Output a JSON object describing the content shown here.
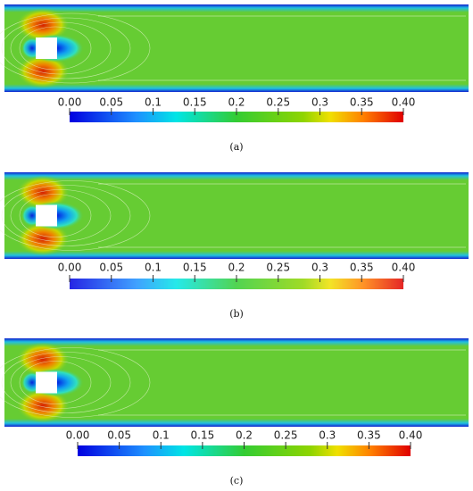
{
  "panels": [
    {
      "ticks": [
        "0.00",
        "0.05",
        "0.1",
        "0.15",
        "0.2",
        "0.25",
        "0.3",
        "0.35",
        "0.40"
      ],
      "caption": "(a)"
    },
    {
      "ticks": [
        "0.00",
        "0.05",
        "0.1",
        "0.15",
        "0.2",
        "0.25",
        "0.3",
        "0.35",
        "0.40"
      ],
      "caption": "(b)"
    },
    {
      "ticks": [
        "0.00",
        "0.05",
        "0.1",
        "0.15",
        "0.2",
        "0.25",
        "0.3",
        "0.35",
        "0.40"
      ],
      "caption": "(c)"
    }
  ]
}
